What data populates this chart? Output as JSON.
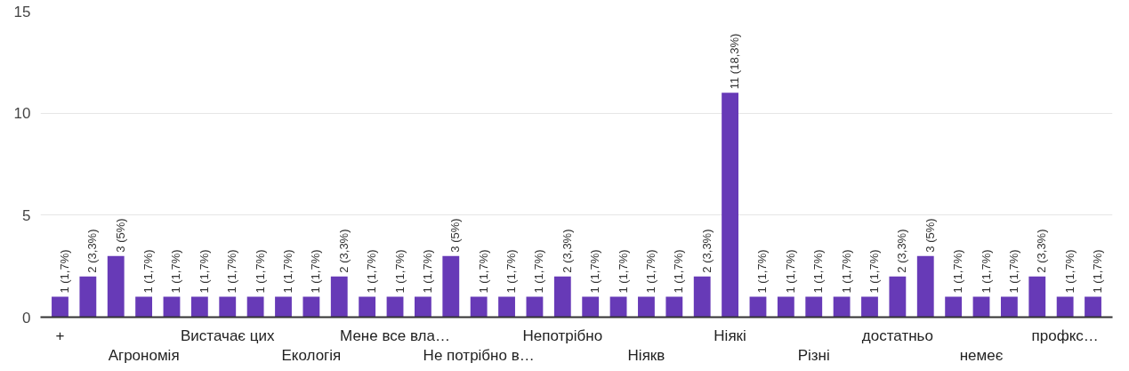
{
  "chart_data": {
    "type": "bar",
    "categories": [
      "+",
      null,
      null,
      "Агрономія",
      null,
      null,
      "Вистачає цих",
      null,
      null,
      "Екологія",
      null,
      null,
      "Мене все вла…",
      null,
      null,
      "Не потрібно в…",
      null,
      null,
      "Непотрібно",
      null,
      null,
      "Ніякв",
      null,
      null,
      "Ніякі",
      null,
      null,
      "Різні",
      null,
      null,
      "достатньо",
      null,
      null,
      "немеє",
      null,
      null,
      "профкс…",
      null
    ],
    "values": [
      1,
      2,
      3,
      1,
      1,
      1,
      1,
      1,
      1,
      1,
      2,
      1,
      1,
      1,
      3,
      1,
      1,
      1,
      2,
      1,
      1,
      1,
      1,
      2,
      11,
      1,
      1,
      1,
      1,
      1,
      2,
      3,
      1,
      1,
      1,
      2,
      1,
      1
    ],
    "value_labels": [
      "1 (1,7%)",
      "2 (3,3%)",
      "3 (5%)",
      "1 (1,7%)",
      "1 (1,7%)",
      "1 (1,7%)",
      "1 (1,7%)",
      "1 (1,7%)",
      "1 (1,7%)",
      "1 (1,7%)",
      "2 (3,3%)",
      "1 (1,7%)",
      "1 (1,7%)",
      "1 (1,7%)",
      "3 (5%)",
      "1 (1,7%)",
      "1 (1,7%)",
      "1 (1,7%)",
      "2 (3,3%)",
      "1 (1,7%)",
      "1 (1,7%)",
      "1 (1,7%)",
      "1 (1,7%)",
      "2 (3,3%)",
      "11 (18,3%)",
      "1 (1,7%)",
      "1 (1,7%)",
      "1 (1,7%)",
      "1 (1,7%)",
      "1 (1,7%)",
      "2 (3,3%)",
      "3 (5%)",
      "1 (1,7%)",
      "1 (1,7%)",
      "1 (1,7%)",
      "2 (3,3%)",
      "1 (1,7%)",
      "1 (1,7%)"
    ],
    "color": "#673ab7",
    "ylim": [
      0,
      15
    ],
    "yticks": [
      0,
      5,
      10,
      15
    ],
    "grid": "y"
  }
}
